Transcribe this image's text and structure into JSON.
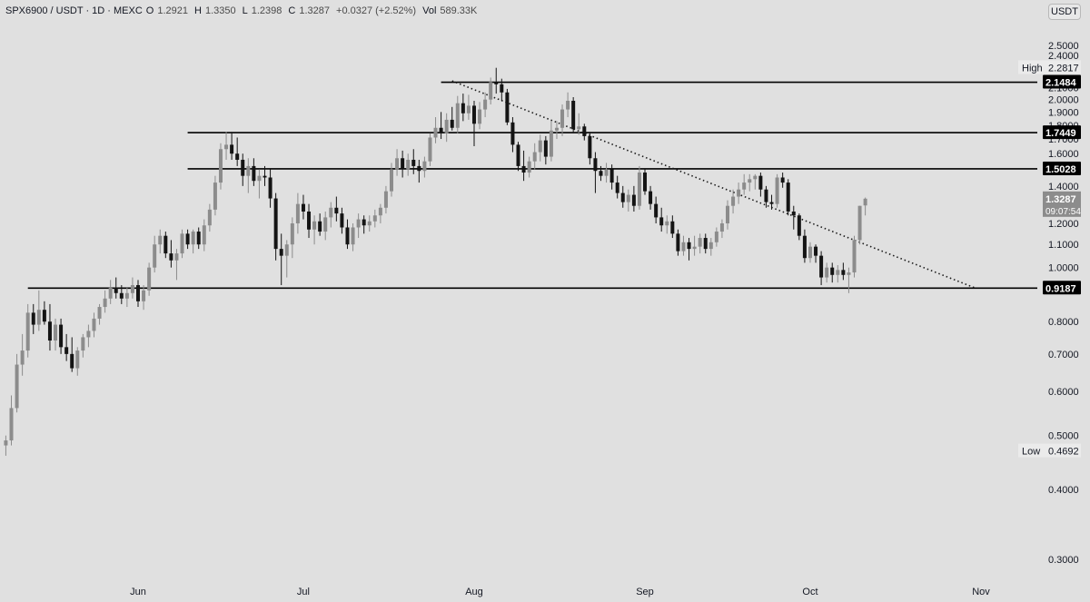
{
  "header": {
    "symbol": "SPX6900 / USDT · 1D · MEXC",
    "open_label": "O",
    "open_value": "1.2921",
    "high_label": "H",
    "high_value": "1.3350",
    "low_label": "L",
    "low_value": "1.2398",
    "close_label": "C",
    "close_value": "1.3287",
    "change": "+0.0327 (+2.52%)",
    "volume_label": "Vol",
    "volume_value": "589.33K"
  },
  "currency_button": "USDT",
  "chart_data": {
    "type": "candlestick",
    "title": "SPX6900 / USDT · 1D · MEXC",
    "y_axis": {
      "scale": "log",
      "range": [
        0.28,
        2.62
      ],
      "ticks": [
        "2.5000",
        "2.4000",
        "2.1000",
        "2.0000",
        "1.9000",
        "1.8000",
        "1.7000",
        "1.6000",
        "1.4000",
        "1.3000",
        "1.2000",
        "1.1000",
        "1.0000",
        "0.8000",
        "0.7000",
        "0.6000",
        "0.5000",
        "0.4000",
        "0.3000"
      ]
    },
    "x_axis": {
      "start": "2024-05-08",
      "end": "2024-11-08",
      "ticks": [
        {
          "label": "Jun",
          "date": "2024-06-01"
        },
        {
          "label": "Jul",
          "date": "2024-07-01"
        },
        {
          "label": "Aug",
          "date": "2024-08-01"
        },
        {
          "label": "Sep",
          "date": "2024-09-01"
        },
        {
          "label": "Oct",
          "date": "2024-10-01"
        },
        {
          "label": "Nov",
          "date": "2024-11-01"
        }
      ]
    },
    "horizontal_levels": [
      {
        "price": 2.1484,
        "label": "2.1484",
        "from_date": "2024-07-26"
      },
      {
        "price": 1.7449,
        "label": "1.7449",
        "from_date": "2024-06-10"
      },
      {
        "price": 1.5028,
        "label": "1.5028",
        "from_date": "2024-06-10"
      },
      {
        "price": 0.9187,
        "label": "0.9187",
        "from_date": "2024-05-12"
      }
    ],
    "trendline": {
      "style": "dotted",
      "from": {
        "date": "2024-07-28",
        "price": 2.16
      },
      "to": {
        "date": "2024-10-31",
        "price": 0.9187
      }
    },
    "price_markers": {
      "high": {
        "label": "High",
        "value": "2.2817"
      },
      "low": {
        "label": "Low",
        "value": "0.4692"
      },
      "last": {
        "value": "1.3287",
        "countdown": "09:07:54"
      }
    },
    "candles_start_date": "2024-05-08",
    "candles": [
      [
        0.48,
        0.5,
        0.46,
        0.49
      ],
      [
        0.49,
        0.59,
        0.48,
        0.56
      ],
      [
        0.56,
        0.7,
        0.55,
        0.67
      ],
      [
        0.67,
        0.76,
        0.64,
        0.71
      ],
      [
        0.71,
        0.86,
        0.69,
        0.83
      ],
      [
        0.83,
        0.86,
        0.76,
        0.79
      ],
      [
        0.79,
        0.91,
        0.77,
        0.84
      ],
      [
        0.84,
        0.87,
        0.79,
        0.8
      ],
      [
        0.8,
        0.86,
        0.71,
        0.74
      ],
      [
        0.74,
        0.81,
        0.71,
        0.79
      ],
      [
        0.79,
        0.81,
        0.7,
        0.72
      ],
      [
        0.72,
        0.76,
        0.68,
        0.7
      ],
      [
        0.7,
        0.75,
        0.65,
        0.66
      ],
      [
        0.66,
        0.72,
        0.64,
        0.71
      ],
      [
        0.71,
        0.76,
        0.69,
        0.75
      ],
      [
        0.75,
        0.79,
        0.72,
        0.77
      ],
      [
        0.77,
        0.83,
        0.75,
        0.81
      ],
      [
        0.81,
        0.86,
        0.79,
        0.85
      ],
      [
        0.85,
        0.91,
        0.83,
        0.88
      ],
      [
        0.88,
        0.95,
        0.86,
        0.92
      ],
      [
        0.92,
        0.96,
        0.88,
        0.9
      ],
      [
        0.9,
        0.93,
        0.86,
        0.88
      ],
      [
        0.88,
        0.92,
        0.85,
        0.9
      ],
      [
        0.9,
        0.96,
        0.88,
        0.93
      ],
      [
        0.93,
        0.95,
        0.85,
        0.87
      ],
      [
        0.87,
        0.93,
        0.84,
        0.91
      ],
      [
        0.91,
        1.02,
        0.89,
        1.0
      ],
      [
        1.0,
        1.14,
        0.98,
        1.1
      ],
      [
        1.1,
        1.17,
        1.06,
        1.14
      ],
      [
        1.14,
        1.16,
        1.04,
        1.06
      ],
      [
        1.06,
        1.12,
        1.0,
        1.03
      ],
      [
        1.03,
        1.08,
        0.95,
        1.06
      ],
      [
        1.06,
        1.17,
        1.04,
        1.15
      ],
      [
        1.15,
        1.17,
        1.08,
        1.1
      ],
      [
        1.1,
        1.17,
        1.06,
        1.16
      ],
      [
        1.16,
        1.18,
        1.08,
        1.1
      ],
      [
        1.1,
        1.22,
        1.07,
        1.19
      ],
      [
        1.19,
        1.3,
        1.16,
        1.27
      ],
      [
        1.27,
        1.46,
        1.24,
        1.42
      ],
      [
        1.42,
        1.67,
        1.38,
        1.63
      ],
      [
        1.63,
        1.75,
        1.56,
        1.66
      ],
      [
        1.66,
        1.75,
        1.56,
        1.6
      ],
      [
        1.6,
        1.71,
        1.52,
        1.56
      ],
      [
        1.56,
        1.6,
        1.4,
        1.46
      ],
      [
        1.46,
        1.57,
        1.36,
        1.52
      ],
      [
        1.52,
        1.57,
        1.4,
        1.43
      ],
      [
        1.43,
        1.5,
        1.33,
        1.46
      ],
      [
        1.46,
        1.52,
        1.4,
        1.45
      ],
      [
        1.45,
        1.5,
        1.28,
        1.33
      ],
      [
        1.33,
        1.36,
        1.03,
        1.08
      ],
      [
        1.08,
        1.15,
        0.93,
        1.05
      ],
      [
        1.05,
        1.12,
        0.96,
        1.1
      ],
      [
        1.1,
        1.23,
        1.04,
        1.2
      ],
      [
        1.2,
        1.36,
        1.15,
        1.3
      ],
      [
        1.3,
        1.35,
        1.22,
        1.26
      ],
      [
        1.26,
        1.3,
        1.13,
        1.17
      ],
      [
        1.17,
        1.24,
        1.1,
        1.21
      ],
      [
        1.21,
        1.25,
        1.14,
        1.16
      ],
      [
        1.16,
        1.26,
        1.12,
        1.23
      ],
      [
        1.23,
        1.31,
        1.18,
        1.28
      ],
      [
        1.28,
        1.34,
        1.21,
        1.25
      ],
      [
        1.25,
        1.28,
        1.15,
        1.18
      ],
      [
        1.18,
        1.22,
        1.08,
        1.1
      ],
      [
        1.1,
        1.2,
        1.07,
        1.18
      ],
      [
        1.18,
        1.25,
        1.13,
        1.22
      ],
      [
        1.22,
        1.24,
        1.15,
        1.19
      ],
      [
        1.19,
        1.24,
        1.16,
        1.21
      ],
      [
        1.21,
        1.27,
        1.18,
        1.24
      ],
      [
        1.24,
        1.3,
        1.2,
        1.28
      ],
      [
        1.28,
        1.4,
        1.25,
        1.37
      ],
      [
        1.37,
        1.54,
        1.34,
        1.5
      ],
      [
        1.5,
        1.63,
        1.46,
        1.57
      ],
      [
        1.57,
        1.62,
        1.45,
        1.5
      ],
      [
        1.5,
        1.6,
        1.46,
        1.56
      ],
      [
        1.56,
        1.63,
        1.47,
        1.52
      ],
      [
        1.52,
        1.56,
        1.42,
        1.49
      ],
      [
        1.49,
        1.58,
        1.45,
        1.55
      ],
      [
        1.55,
        1.74,
        1.52,
        1.71
      ],
      [
        1.71,
        1.86,
        1.67,
        1.78
      ],
      [
        1.78,
        1.9,
        1.7,
        1.74
      ],
      [
        1.74,
        1.89,
        1.68,
        1.84
      ],
      [
        1.84,
        1.94,
        1.76,
        1.78
      ],
      [
        1.78,
        2.03,
        1.74,
        1.97
      ],
      [
        1.97,
        2.05,
        1.83,
        1.89
      ],
      [
        1.89,
        2.04,
        1.84,
        1.95
      ],
      [
        1.95,
        1.99,
        1.65,
        1.81
      ],
      [
        1.81,
        1.98,
        1.77,
        1.92
      ],
      [
        1.92,
        2.06,
        1.86,
        2.0
      ],
      [
        2.0,
        2.19,
        1.96,
        2.15
      ],
      [
        2.15,
        2.28,
        2.05,
        2.13
      ],
      [
        2.13,
        2.18,
        1.99,
        2.06
      ],
      [
        2.06,
        2.09,
        1.8,
        1.82
      ],
      [
        1.82,
        1.86,
        1.61,
        1.66
      ],
      [
        1.66,
        1.68,
        1.49,
        1.52
      ],
      [
        1.52,
        1.62,
        1.43,
        1.48
      ],
      [
        1.48,
        1.58,
        1.45,
        1.55
      ],
      [
        1.55,
        1.67,
        1.5,
        1.61
      ],
      [
        1.61,
        1.73,
        1.55,
        1.69
      ],
      [
        1.69,
        1.72,
        1.53,
        1.58
      ],
      [
        1.58,
        1.83,
        1.55,
        1.76
      ],
      [
        1.76,
        1.83,
        1.7,
        1.78
      ],
      [
        1.78,
        1.96,
        1.72,
        1.92
      ],
      [
        1.92,
        2.06,
        1.86,
        1.99
      ],
      [
        1.99,
        2.02,
        1.75,
        1.77
      ],
      [
        1.77,
        1.89,
        1.73,
        1.79
      ],
      [
        1.79,
        1.81,
        1.69,
        1.72
      ],
      [
        1.72,
        1.75,
        1.53,
        1.57
      ],
      [
        1.57,
        1.61,
        1.36,
        1.49
      ],
      [
        1.49,
        1.52,
        1.43,
        1.46
      ],
      [
        1.46,
        1.54,
        1.42,
        1.5
      ],
      [
        1.5,
        1.53,
        1.38,
        1.42
      ],
      [
        1.42,
        1.46,
        1.33,
        1.36
      ],
      [
        1.36,
        1.4,
        1.28,
        1.31
      ],
      [
        1.31,
        1.38,
        1.26,
        1.35
      ],
      [
        1.35,
        1.4,
        1.26,
        1.29
      ],
      [
        1.29,
        1.52,
        1.27,
        1.48
      ],
      [
        1.48,
        1.5,
        1.35,
        1.37
      ],
      [
        1.37,
        1.4,
        1.27,
        1.3
      ],
      [
        1.3,
        1.34,
        1.2,
        1.23
      ],
      [
        1.23,
        1.28,
        1.16,
        1.19
      ],
      [
        1.19,
        1.24,
        1.15,
        1.21
      ],
      [
        1.21,
        1.24,
        1.13,
        1.15
      ],
      [
        1.15,
        1.17,
        1.05,
        1.07
      ],
      [
        1.07,
        1.14,
        1.05,
        1.11
      ],
      [
        1.11,
        1.13,
        1.03,
        1.08
      ],
      [
        1.08,
        1.14,
        1.05,
        1.09
      ],
      [
        1.09,
        1.15,
        1.06,
        1.13
      ],
      [
        1.13,
        1.15,
        1.06,
        1.08
      ],
      [
        1.08,
        1.13,
        1.05,
        1.11
      ],
      [
        1.11,
        1.18,
        1.09,
        1.16
      ],
      [
        1.16,
        1.22,
        1.13,
        1.2
      ],
      [
        1.2,
        1.32,
        1.17,
        1.29
      ],
      [
        1.29,
        1.38,
        1.25,
        1.34
      ],
      [
        1.34,
        1.42,
        1.3,
        1.38
      ],
      [
        1.38,
        1.47,
        1.35,
        1.42
      ],
      [
        1.42,
        1.47,
        1.37,
        1.44
      ],
      [
        1.44,
        1.47,
        1.38,
        1.46
      ],
      [
        1.46,
        1.48,
        1.34,
        1.38
      ],
      [
        1.38,
        1.4,
        1.28,
        1.31
      ],
      [
        1.31,
        1.35,
        1.27,
        1.3
      ],
      [
        1.3,
        1.47,
        1.28,
        1.45
      ],
      [
        1.45,
        1.48,
        1.39,
        1.42
      ],
      [
        1.42,
        1.44,
        1.24,
        1.26
      ],
      [
        1.26,
        1.29,
        1.17,
        1.24
      ],
      [
        1.24,
        1.25,
        1.12,
        1.14
      ],
      [
        1.14,
        1.17,
        1.02,
        1.04
      ],
      [
        1.04,
        1.11,
        1.02,
        1.09
      ],
      [
        1.09,
        1.1,
        1.02,
        1.05
      ],
      [
        1.05,
        1.07,
        0.93,
        0.96
      ],
      [
        0.96,
        1.02,
        0.94,
        1.0
      ],
      [
        1.0,
        1.02,
        0.94,
        0.97
      ],
      [
        0.97,
        1.01,
        0.94,
        0.99
      ],
      [
        0.99,
        1.02,
        0.95,
        0.97
      ],
      [
        0.97,
        1.0,
        0.9,
        0.98
      ],
      [
        0.98,
        1.14,
        0.96,
        1.12
      ],
      [
        1.12,
        1.29,
        1.1,
        1.29
      ],
      [
        1.2921,
        1.335,
        1.2398,
        1.3287
      ]
    ]
  },
  "colors": {
    "background": "#e0e0e0",
    "up_candle": "#8c8c8c",
    "down_candle": "#141414",
    "level_line": "#000000",
    "tag_bg": "#000000",
    "tag_text": "#ffffff",
    "last_price_bg": "#8c8c8c",
    "marker_bg": "#ebebeb"
  }
}
